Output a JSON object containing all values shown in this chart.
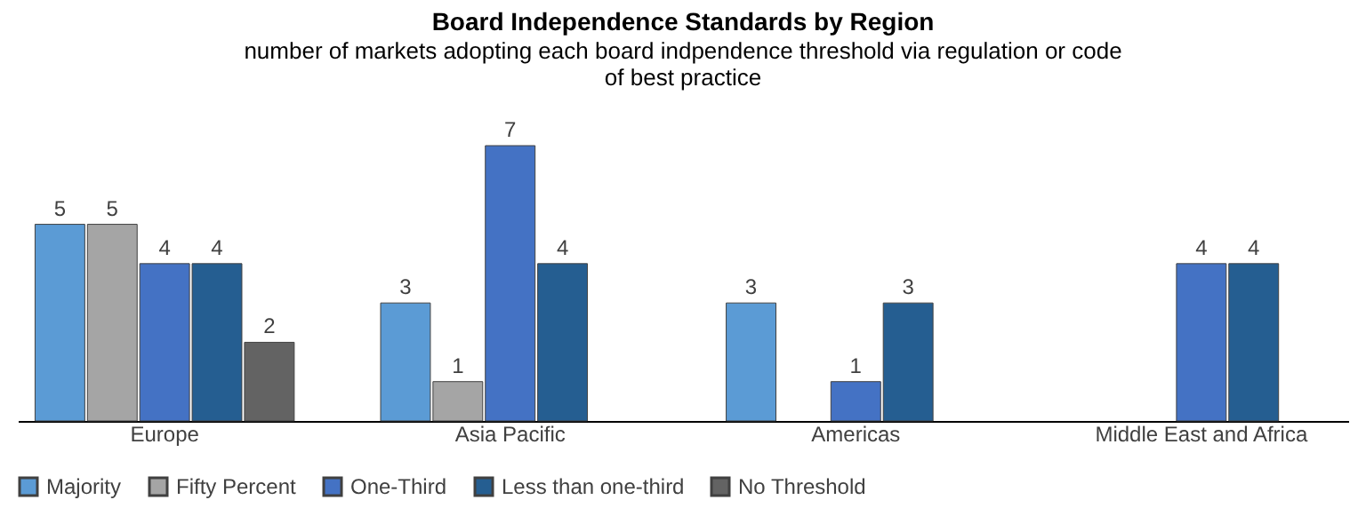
{
  "chart_data": {
    "type": "bar",
    "title": "Board Independence Standards by Region",
    "subtitle": [
      "number of markets adopting each board indpendence threshold via regulation or code",
      "of best practice"
    ],
    "categories": [
      "Europe",
      "Asia Pacific",
      "Americas",
      "Middle East and Africa"
    ],
    "series": [
      {
        "name": "Majority",
        "color": "#5b9bd5",
        "values": [
          5,
          3,
          3,
          null
        ]
      },
      {
        "name": "Fifty Percent",
        "color": "#a5a5a5",
        "values": [
          5,
          1,
          null,
          null
        ]
      },
      {
        "name": "One-Third",
        "color": "#4472c4",
        "values": [
          4,
          7,
          1,
          4
        ]
      },
      {
        "name": "Less than one-third",
        "color": "#255e91",
        "values": [
          4,
          4,
          3,
          4
        ]
      },
      {
        "name": "No Threshold",
        "color": "#636363",
        "values": [
          2,
          null,
          null,
          null
        ]
      }
    ],
    "data_labels": true,
    "grid": false,
    "legend": "bottom",
    "tick_labels": "x"
  }
}
